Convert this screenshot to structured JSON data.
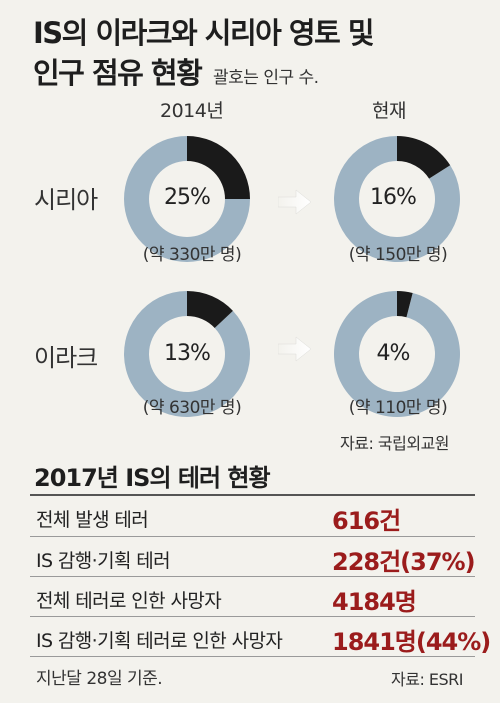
{
  "title_line1": "IS의 이라크와 시리아 영토 및",
  "title_line2": "인구 점유 현황",
  "note": "괄호는 인구 수.",
  "colors": {
    "filled": "#1a1a1a",
    "remaining": "#9db3c3",
    "highlight": "#9b1c1c"
  },
  "chart_data": {
    "type": "pie",
    "columns": [
      "2014년",
      "현재"
    ],
    "rows": [
      {
        "label": "시리아",
        "cells": [
          {
            "value": 25,
            "percent_label": "25%",
            "population": "(약 330만 명)"
          },
          {
            "value": 16,
            "percent_label": "16%",
            "population": "(약 150만 명)"
          }
        ]
      },
      {
        "label": "이라크",
        "cells": [
          {
            "value": 13,
            "percent_label": "13%",
            "population": "(약 630만 명)"
          },
          {
            "value": 4,
            "percent_label": "4%",
            "population": "(약 110만 명)"
          }
        ]
      }
    ]
  },
  "source1": "자료: 국립외교원",
  "section2_title": "2017년 IS의 테러 현황",
  "stats": [
    {
      "label": "전체 발생 테러",
      "value": "616건"
    },
    {
      "label": "IS 감행·기획 테러",
      "value": "228건(37%)"
    },
    {
      "label": "전체 테러로 인한 사망자",
      "value": "4184명"
    },
    {
      "label": "IS 감행·기획 테러로 인한 사망자",
      "value": "1841명(44%)"
    }
  ],
  "footnote": "지난달 28일 기준.",
  "source2": "자료: ESRI"
}
